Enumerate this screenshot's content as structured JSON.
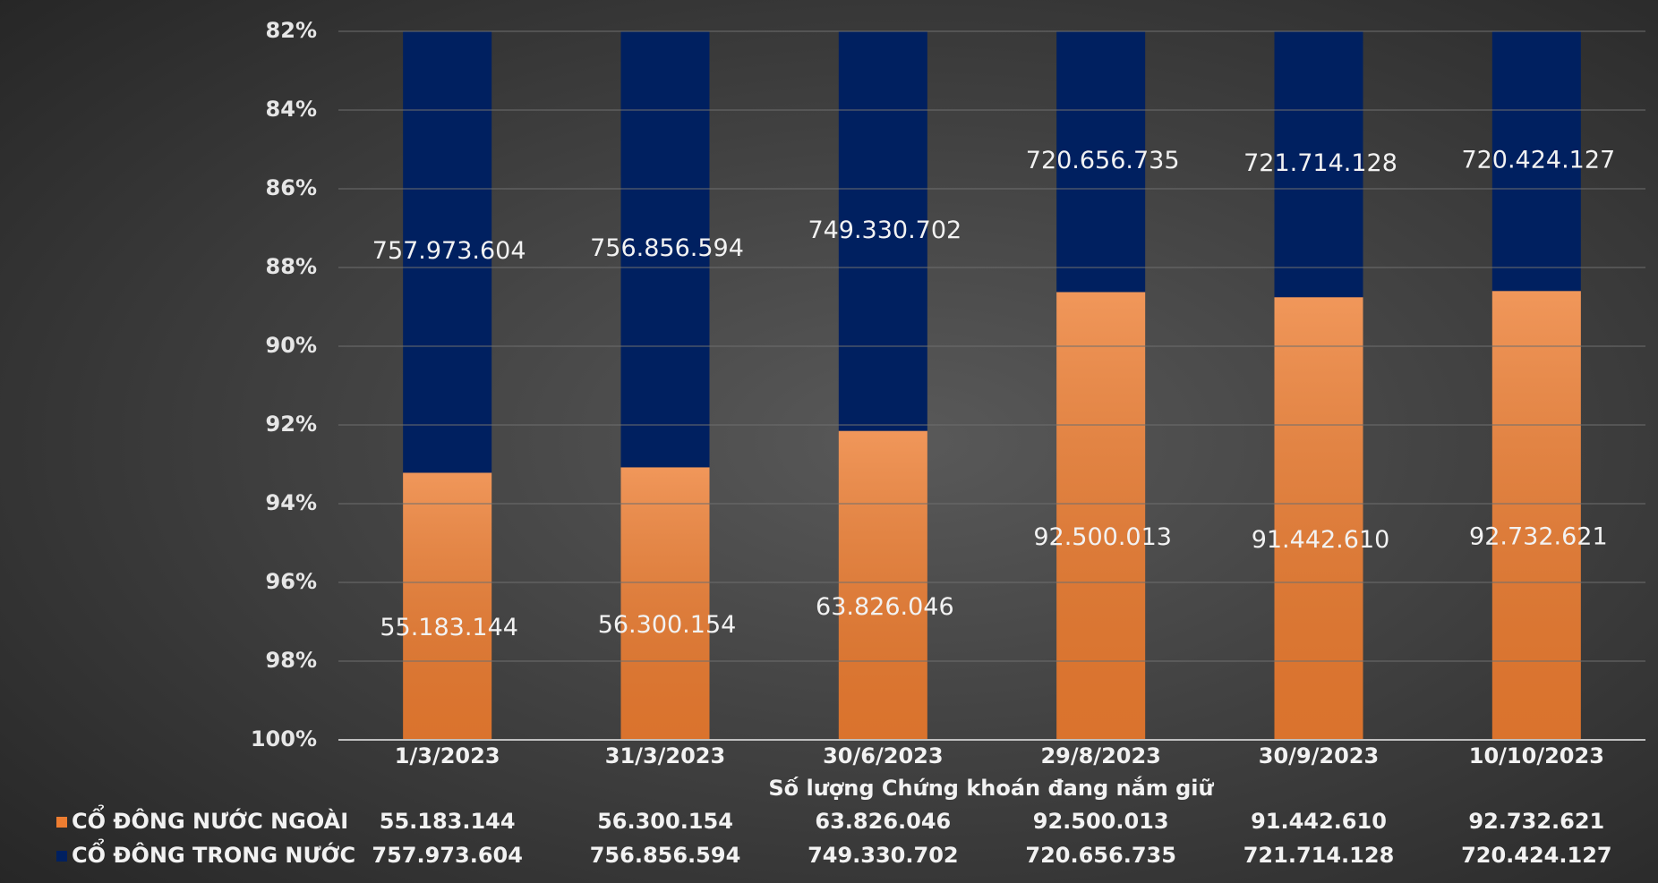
{
  "chart_data": {
    "type": "bar",
    "stacking": "percent",
    "x_label": "Số lượng Chứng khoán đang nắm giữ",
    "categories": [
      "1/3/2023",
      "31/3/2023",
      "30/6/2023",
      "29/8/2023",
      "30/9/2023",
      "10/10/2023"
    ],
    "series": [
      {
        "name": "CỔ ĐÔNG NƯỚC NGOÀI",
        "color": "#ed7d31",
        "values": [
          55183144,
          56300154,
          63826046,
          92500013,
          91442610,
          92732621
        ],
        "value_labels": [
          "55.183.144",
          "56.300.154",
          "63.826.046",
          "92.500.013",
          "91.442.610",
          "92.732.621"
        ]
      },
      {
        "name": "CỔ ĐÔNG TRONG NƯỚC",
        "color": "#002060",
        "values": [
          757973604,
          756856594,
          749330702,
          720656735,
          721714128,
          720424127
        ],
        "value_labels": [
          "757.973.604",
          "756.856.594",
          "749.330.702",
          "720.656.735",
          "721.714.128",
          "720.424.127"
        ]
      }
    ],
    "ylim": [
      100,
      82
    ],
    "yticks": [
      {
        "value": 82,
        "label": "82%"
      },
      {
        "value": 84,
        "label": "84%"
      },
      {
        "value": 86,
        "label": "86%"
      },
      {
        "value": 88,
        "label": "88%"
      },
      {
        "value": 90,
        "label": "90%"
      },
      {
        "value": 92,
        "label": "92%"
      },
      {
        "value": 94,
        "label": "94%"
      },
      {
        "value": 96,
        "label": "96%"
      },
      {
        "value": 98,
        "label": "98%"
      },
      {
        "value": 100,
        "label": "100%"
      }
    ],
    "grid": true,
    "data_table": true
  }
}
